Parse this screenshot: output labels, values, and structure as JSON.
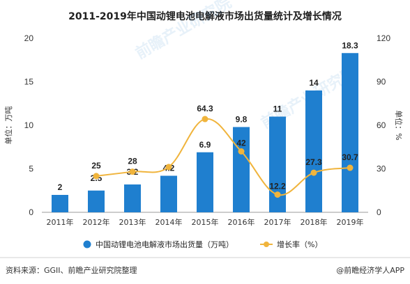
{
  "chart_data": {
    "type": "bar",
    "title": "2011-2019年中国动锂电池电解液市场出货量统计及增长情况",
    "categories": [
      "2011年",
      "2012年",
      "2013年",
      "2014年",
      "2015年",
      "2016年",
      "2017年",
      "2018年",
      "2019年"
    ],
    "series": [
      {
        "name": "中国动锂电池电解液市场出货量（万吨）",
        "type": "bar",
        "axis": "left",
        "color": "#1f7fcf",
        "values": [
          2,
          2.5,
          3.2,
          4.2,
          6.9,
          9.8,
          11,
          14,
          18.3
        ],
        "labels": [
          "2",
          "2.5",
          "3.2",
          "4.2",
          "6.9",
          "9.8",
          "11",
          "14",
          "18.3"
        ]
      },
      {
        "name": "增长率（%）",
        "type": "line",
        "axis": "right",
        "color": "#f0b43c",
        "values": [
          null,
          25,
          28,
          31.25,
          64.3,
          42,
          12.2,
          27.3,
          30.7
        ],
        "labels": [
          "",
          "25",
          "28",
          "",
          "64.3",
          "42",
          "12.2",
          "27.3",
          "30.7"
        ]
      }
    ],
    "ylabel_left": "单位：万吨",
    "ylabel_right": "单位：%",
    "ylim_left": [
      0,
      20
    ],
    "yticks_left": [
      0,
      5,
      10,
      15,
      20
    ],
    "ylim_right": [
      0,
      120
    ],
    "yticks_right": [
      0,
      30,
      60,
      90,
      120
    ],
    "grid": false,
    "legend_position": "bottom"
  },
  "watermark": "前瞻产业研究院",
  "footer": {
    "source": "资料来源：GGII、前瞻产业研究院整理",
    "brand": "@前瞻经济学人APP"
  }
}
